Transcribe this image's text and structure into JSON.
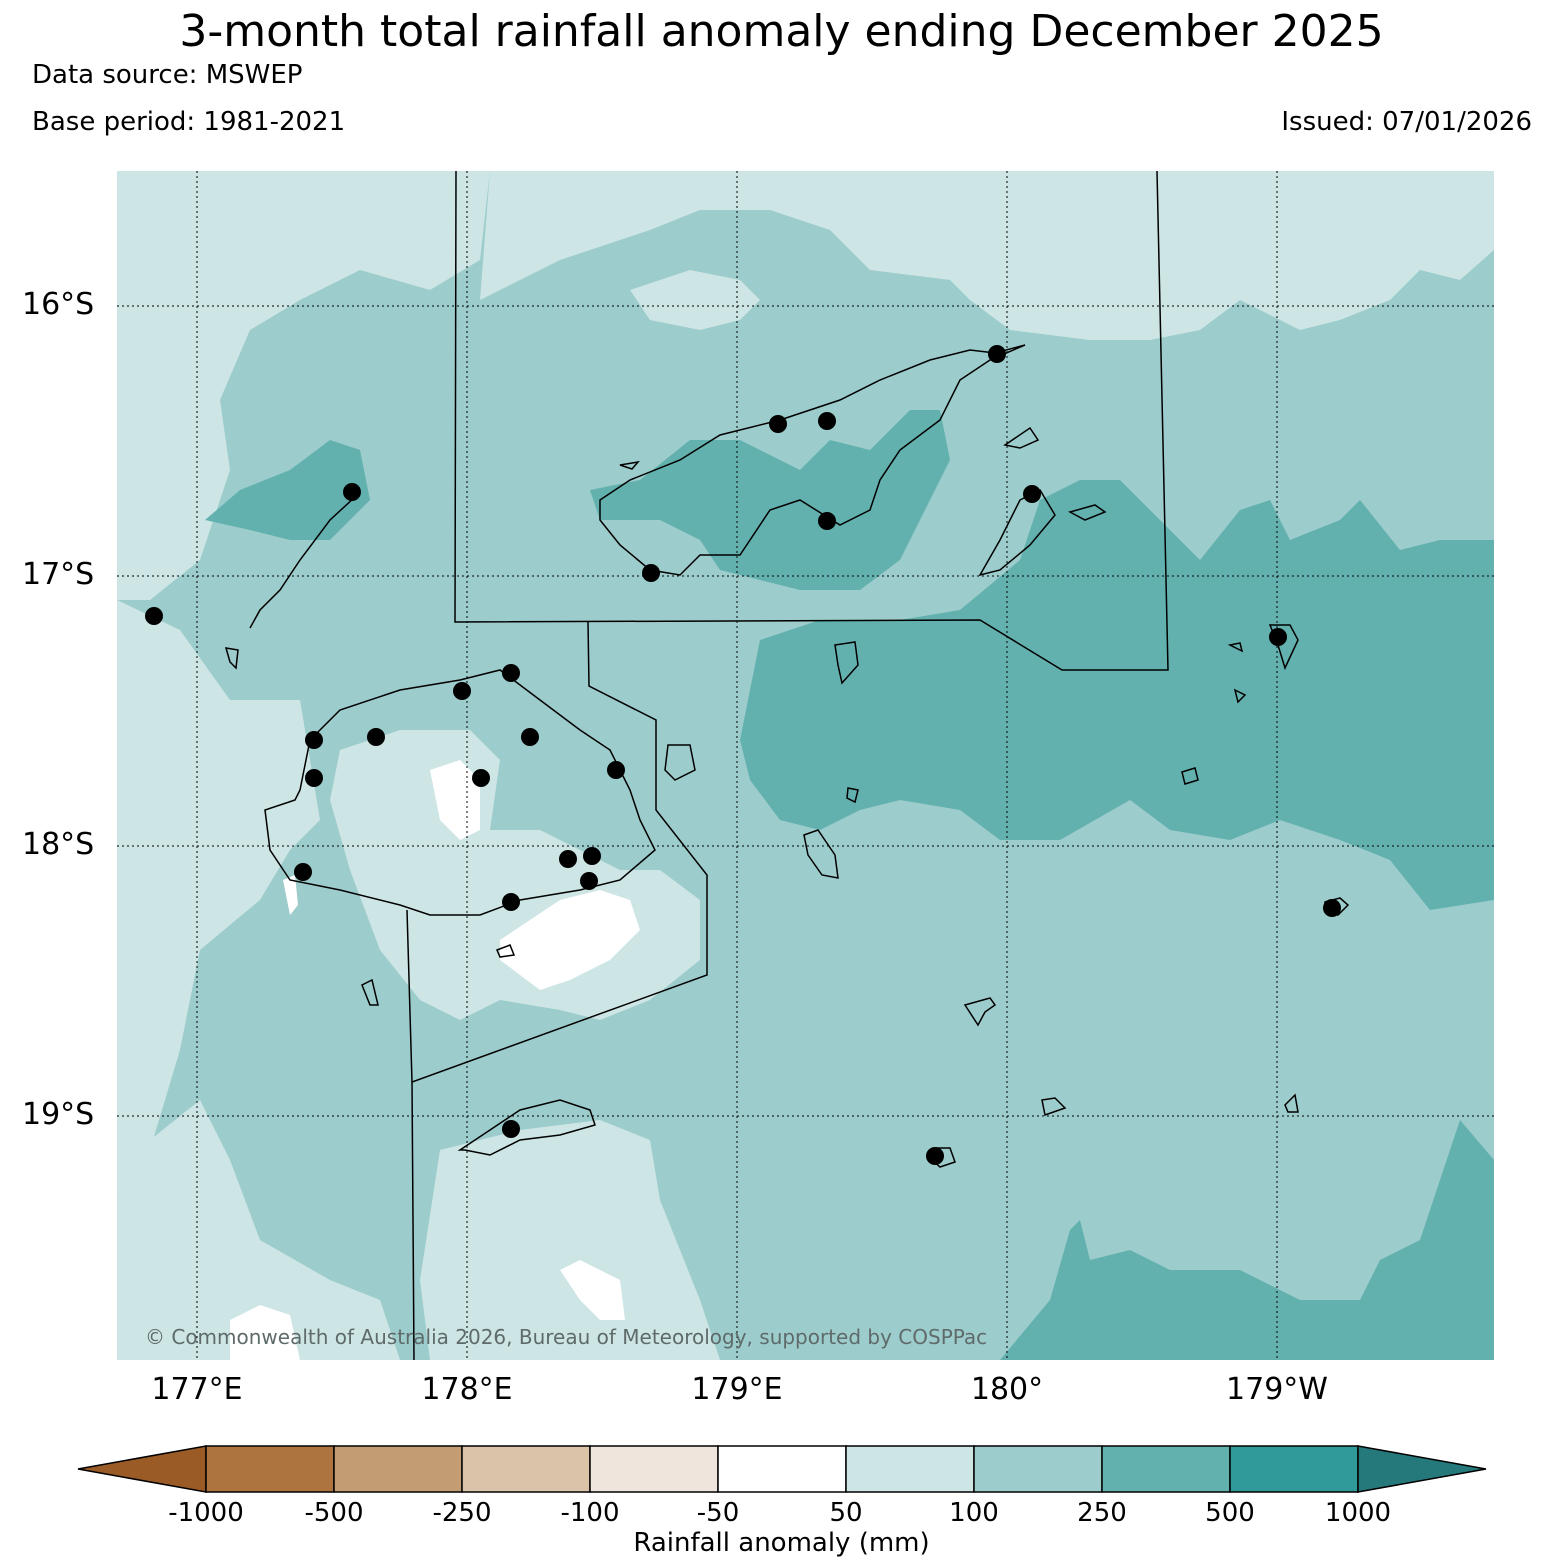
{
  "title": "3-month total rainfall anomaly ending December 2025",
  "data_source": "Data source: MSWEP",
  "base_period": "Base period: 1981-2021",
  "issued": "Issued: 07/01/2026",
  "latitude_labels": [
    "16°S",
    "17°S",
    "18°S",
    "19°S"
  ],
  "longitude_labels": [
    "177°E",
    "178°E",
    "179°E",
    "180°",
    "179°W"
  ],
  "copyright": "© Commonwealth of Australia 2026, Bureau of Meteorology, supported by COSPPac",
  "colorbar": {
    "label": "Rainfall anomaly (mm)",
    "ticks": [
      "-1000",
      "-500",
      "-250",
      "-100",
      "-50",
      "50",
      "100",
      "250",
      "500",
      "1000"
    ],
    "colors": [
      "#9a5b26",
      "#ad7440",
      "#c49c73",
      "#dbc3aa",
      "#efe5dc",
      "#ffffff",
      "#cde5e4",
      "#9ccccb",
      "#63b1af",
      "#30999a",
      "#26797a"
    ]
  },
  "legend_colors": {
    "c50_100": "#cde5e4",
    "c100_250": "#9ccccb",
    "c250_500": "#63b1af",
    "white": "#ffffff"
  }
}
